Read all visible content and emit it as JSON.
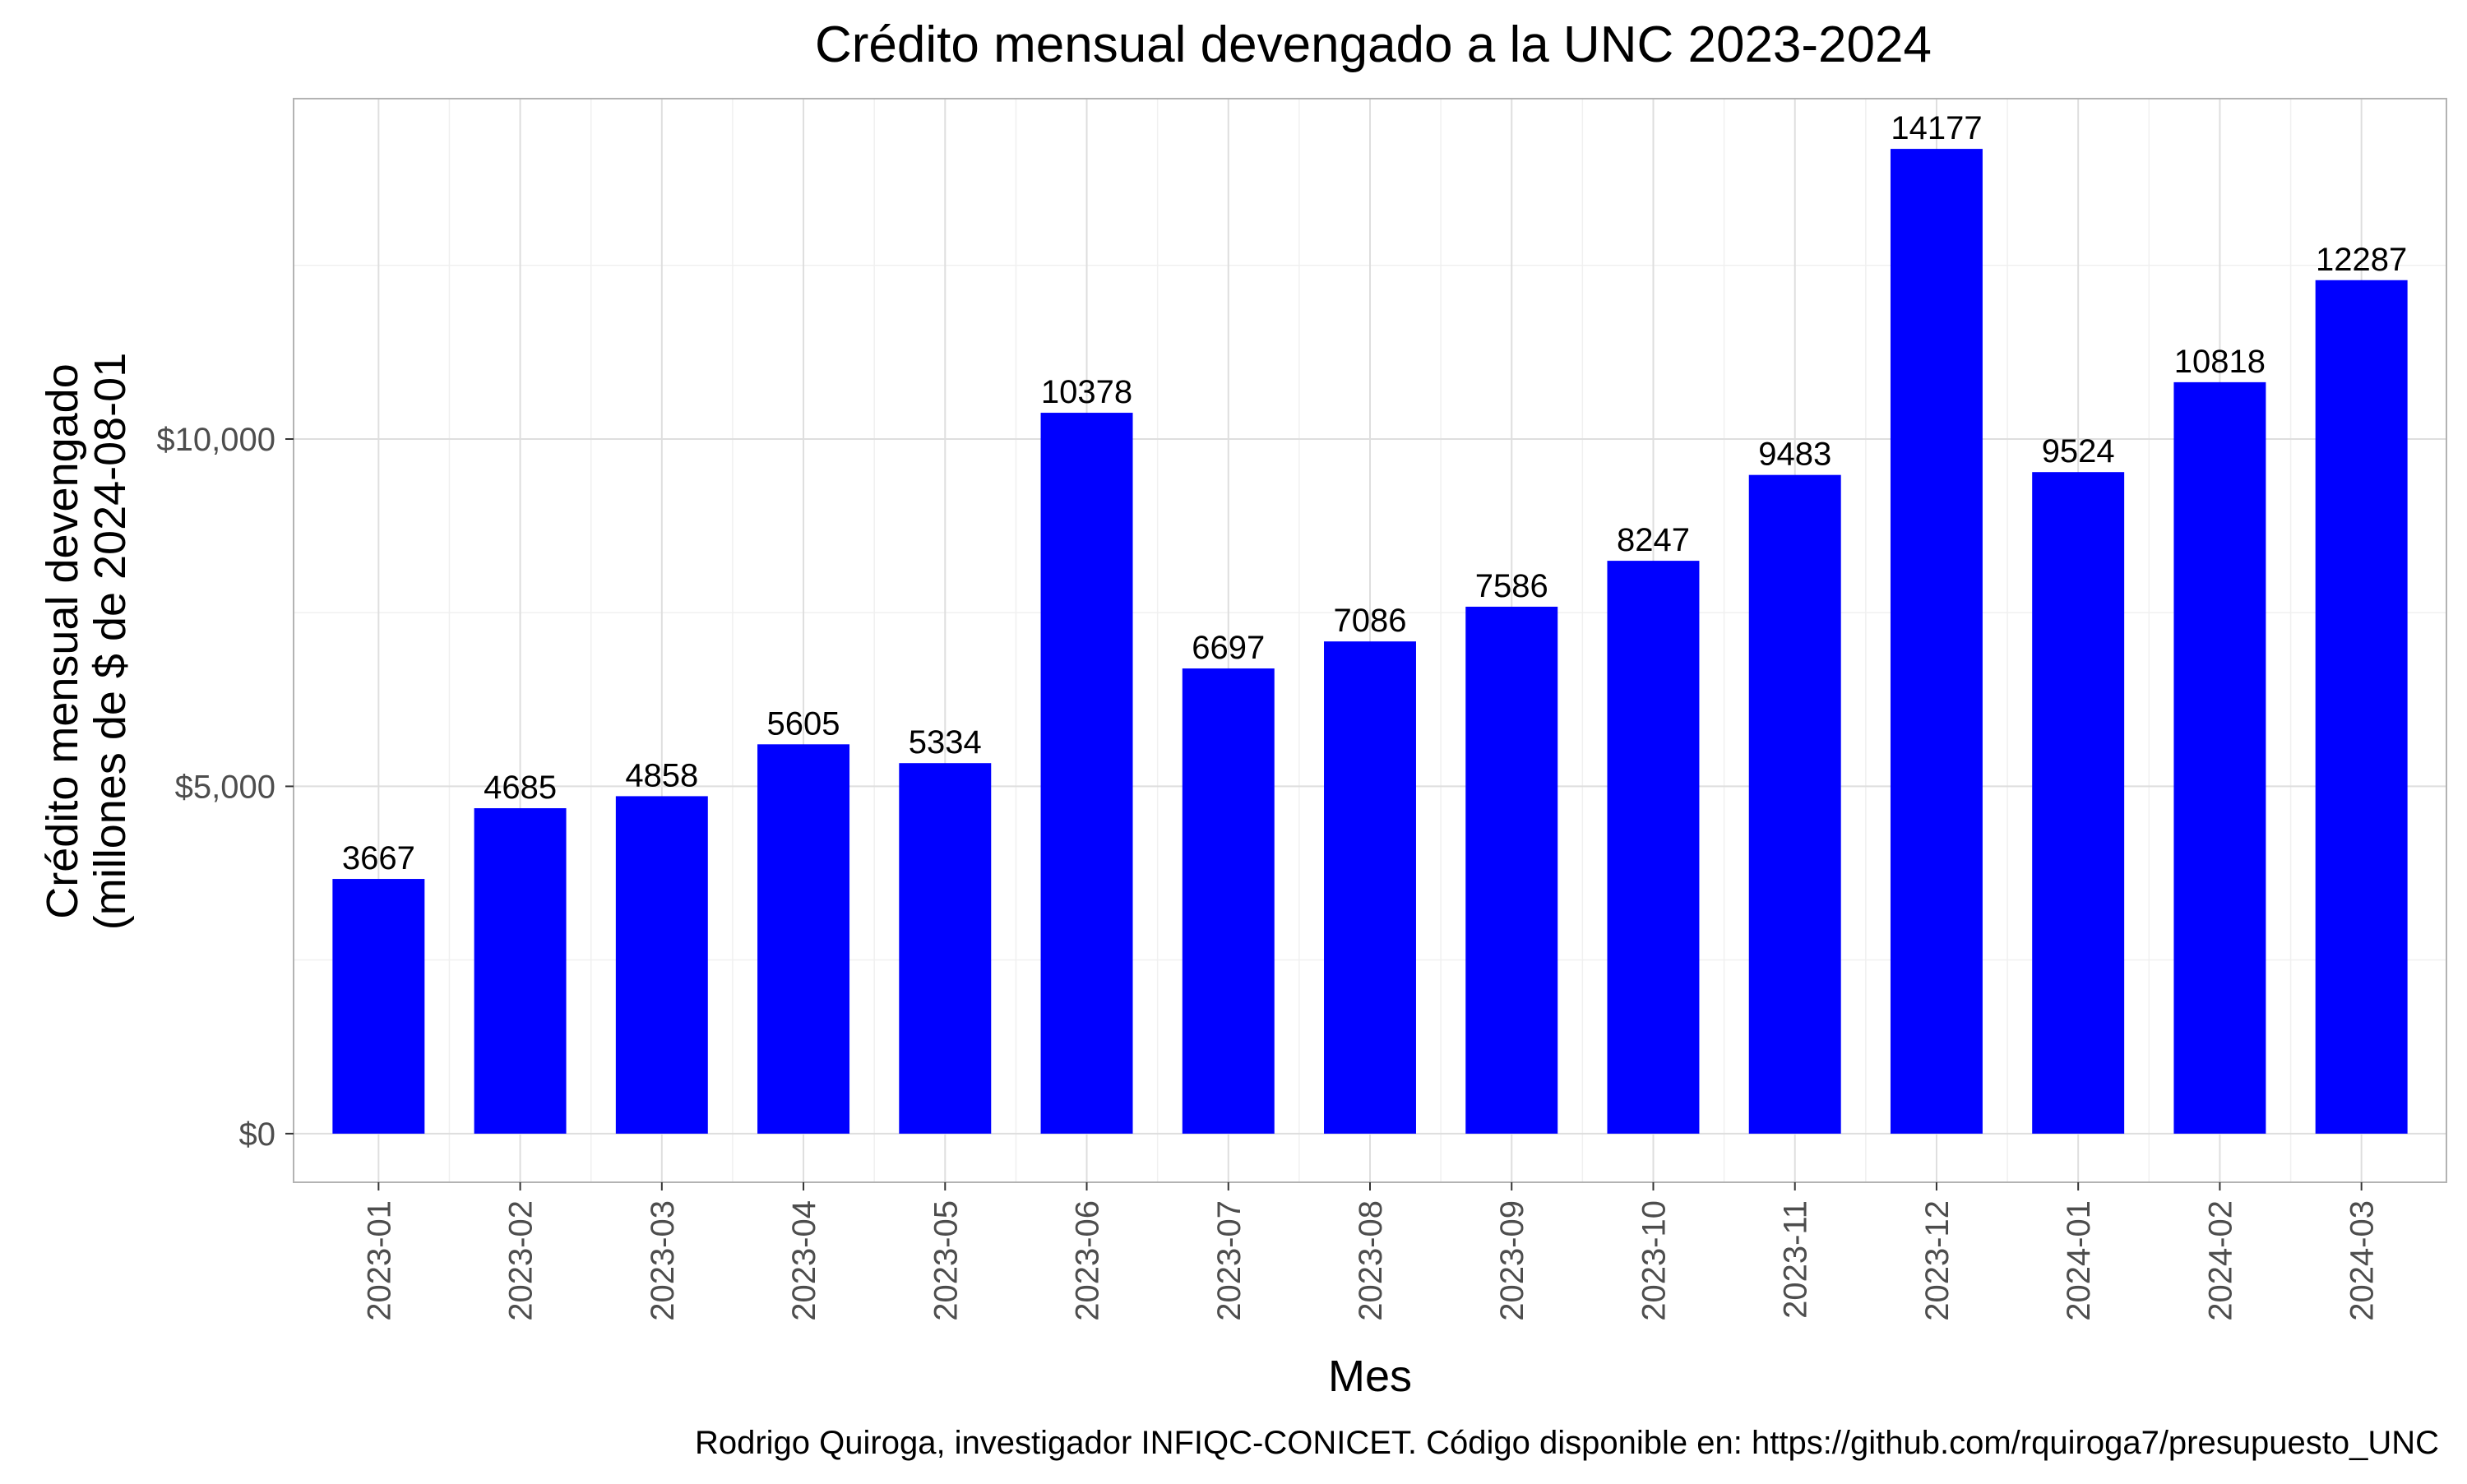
{
  "chart_data": {
    "type": "bar",
    "title": "Crédito mensual devengado a la UNC 2023-2024",
    "xlabel": "Mes",
    "ylabel_lines": [
      "Crédito mensual devengado",
      "(millones de $ de 2024-08-01"
    ],
    "caption": "Rodrigo Quiroga, investigador INFIQC-CONICET. Código disponible en: https://github.com/rquiroga7/presupuesto_UNC",
    "categories": [
      "2023-01",
      "2023-02",
      "2023-03",
      "2023-04",
      "2023-05",
      "2023-06",
      "2023-07",
      "2023-08",
      "2023-09",
      "2023-10",
      "2023-11",
      "2023-12",
      "2024-01",
      "2024-02",
      "2024-03"
    ],
    "values": [
      3667,
      4685,
      4858,
      5605,
      5334,
      10378,
      6697,
      7086,
      7586,
      8247,
      9483,
      14177,
      9524,
      10818,
      12287
    ],
    "data_labels": [
      "3667",
      "4685",
      "4858",
      "5605",
      "5334",
      "10378",
      "6697",
      "7086",
      "7586",
      "8247",
      "9483",
      "14177",
      "9524",
      "10818",
      "12287"
    ],
    "yticks": [
      0,
      5000,
      10000
    ],
    "ytick_labels": [
      "$0",
      "$5,000",
      "$10,000"
    ],
    "ylim": [
      -700,
      14900
    ],
    "bar_color": "#0000ff",
    "grid": true,
    "legend": "none"
  }
}
